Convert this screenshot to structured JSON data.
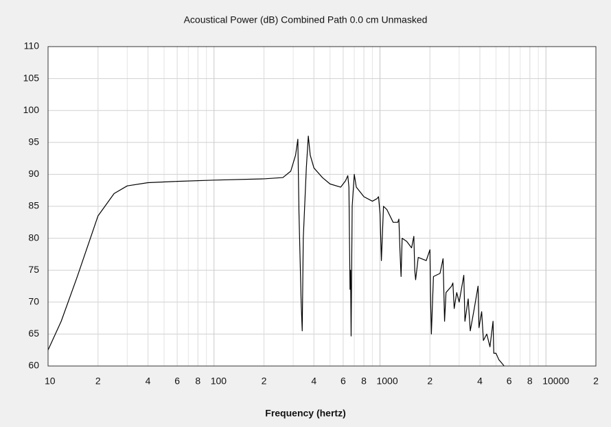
{
  "chart_data": {
    "type": "line",
    "title": "Acoustical Power (dB)   Combined   Path 0.0 cm   Unmasked",
    "x_label": "Frequency (hertz)",
    "x_log": true,
    "grid": true,
    "minor_grid": true,
    "color": "#000000",
    "xlim": [
      10,
      20000
    ],
    "ylim": [
      60,
      110
    ],
    "xticks": [
      10,
      {
        "value": 20,
        "label": "2"
      },
      {
        "value": 40,
        "label": "4"
      },
      {
        "value": 60,
        "label": "6"
      },
      {
        "value": 80,
        "label": "8"
      },
      100,
      {
        "value": 200,
        "label": "2"
      },
      {
        "value": 400,
        "label": "4"
      },
      {
        "value": 600,
        "label": "6"
      },
      {
        "value": 800,
        "label": "8"
      },
      1000,
      {
        "value": 2000,
        "label": "2"
      },
      {
        "value": 4000,
        "label": "4"
      },
      {
        "value": 6000,
        "label": "6"
      },
      {
        "value": 8000,
        "label": "8"
      },
      10000,
      {
        "value": 20000,
        "label": "2"
      }
    ],
    "yticks": [
      60,
      65,
      70,
      75,
      80,
      85,
      90,
      95,
      100,
      105,
      110
    ],
    "x": [
      10,
      12,
      15,
      20,
      25,
      30,
      40,
      60,
      100,
      200,
      260,
      290,
      310,
      320,
      325,
      335,
      340,
      345,
      360,
      370,
      380,
      400,
      450,
      500,
      580,
      620,
      640,
      650,
      660,
      665,
      670,
      680,
      700,
      720,
      800,
      900,
      960,
      980,
      1000,
      1020,
      1050,
      1100,
      1200,
      1280,
      1300,
      1320,
      1340,
      1360,
      1450,
      1550,
      1600,
      1620,
      1640,
      1700,
      1900,
      2000,
      2020,
      2040,
      2100,
      2300,
      2400,
      2450,
      2500,
      2700,
      2750,
      2800,
      2900,
      3000,
      3200,
      3250,
      3400,
      3500,
      3700,
      3900,
      3950,
      4100,
      4200,
      4400,
      4600,
      4800,
      4850,
      5000,
      5200,
      5400,
      5600
    ],
    "values": [
      62.5,
      67,
      74,
      83.5,
      87,
      88.2,
      88.7,
      88.9,
      89.1,
      89.3,
      89.5,
      90.5,
      93,
      95.5,
      84,
      70,
      65.5,
      80,
      91,
      96,
      93,
      91,
      89.5,
      88.5,
      88,
      89,
      89.8,
      88,
      72,
      75,
      64.7,
      85,
      90,
      88,
      86.5,
      85.8,
      86.2,
      86.5,
      84,
      76.5,
      85,
      84.5,
      82.5,
      82.5,
      83,
      78,
      74,
      80,
      79.5,
      78.5,
      80.3,
      75,
      73.5,
      77,
      76.5,
      78.2,
      70,
      65,
      74,
      74.5,
      76.8,
      67,
      71.5,
      72.5,
      73,
      69,
      71.5,
      70,
      74.2,
      67,
      70.5,
      65.5,
      69,
      72.5,
      66,
      68.5,
      64,
      65,
      63,
      67,
      62,
      62,
      61,
      60.5,
      60
    ]
  }
}
